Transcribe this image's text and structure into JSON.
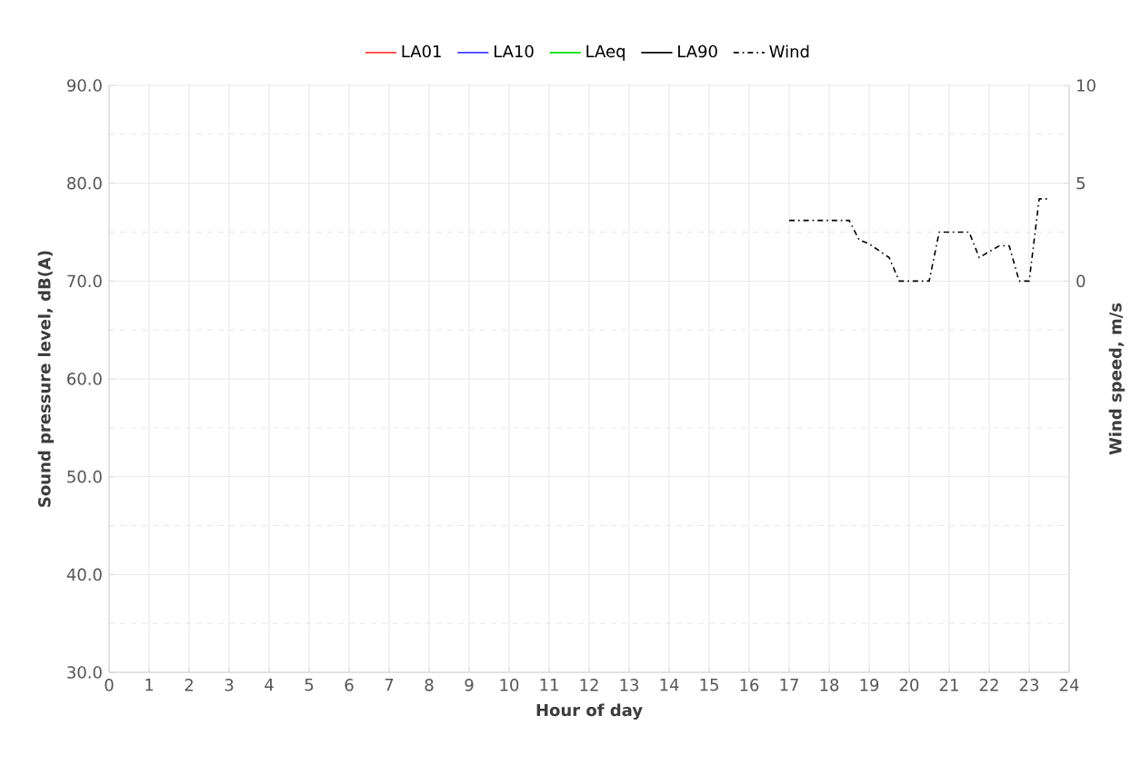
{
  "chart_data": {
    "type": "line",
    "xlabel": "Hour of day",
    "ylabel": "Sound pressure level, dB(A)",
    "y2label": "Wind speed, m/s",
    "xlim": [
      0,
      24
    ],
    "xticks": [
      0,
      1,
      2,
      3,
      4,
      5,
      6,
      7,
      8,
      9,
      10,
      11,
      12,
      13,
      14,
      15,
      16,
      17,
      18,
      19,
      20,
      21,
      22,
      23,
      24
    ],
    "ylim": [
      30,
      90
    ],
    "yticks": [
      {
        "value": 30,
        "label": "30.0"
      },
      {
        "value": 40,
        "label": "40.0"
      },
      {
        "value": 50,
        "label": "50.0"
      },
      {
        "value": 60,
        "label": "60.0"
      },
      {
        "value": 70,
        "label": "70.0"
      },
      {
        "value": 80,
        "label": "80.0"
      },
      {
        "value": 90,
        "label": "90.0"
      }
    ],
    "y2lim": [
      -20,
      10
    ],
    "y2ticks": [
      0,
      5,
      10
    ],
    "grid": true,
    "legend": "top",
    "marker": "none",
    "series": [
      {
        "name": "LA01",
        "color": "#ff4040"
      },
      {
        "name": "LA10",
        "color": "#4040ff"
      },
      {
        "name": "LAeq",
        "color": "#00e000"
      },
      {
        "name": "LA90",
        "color": "#000000"
      },
      {
        "name": "Wind",
        "color": "#000000",
        "axis": "y2",
        "line_style": "dashdot",
        "x": [
          17,
          18.5,
          18.75,
          19,
          19.5,
          19.75,
          20.5,
          20.75,
          21.5,
          21.75,
          22.25,
          22.5,
          22.75,
          23,
          23.25,
          23.5
        ],
        "values": [
          3.1,
          3.1,
          2.1,
          1.9,
          1.2,
          0,
          0,
          2.5,
          2.5,
          1.2,
          1.8,
          1.8,
          0,
          0,
          4.2,
          4.2
        ]
      }
    ]
  }
}
